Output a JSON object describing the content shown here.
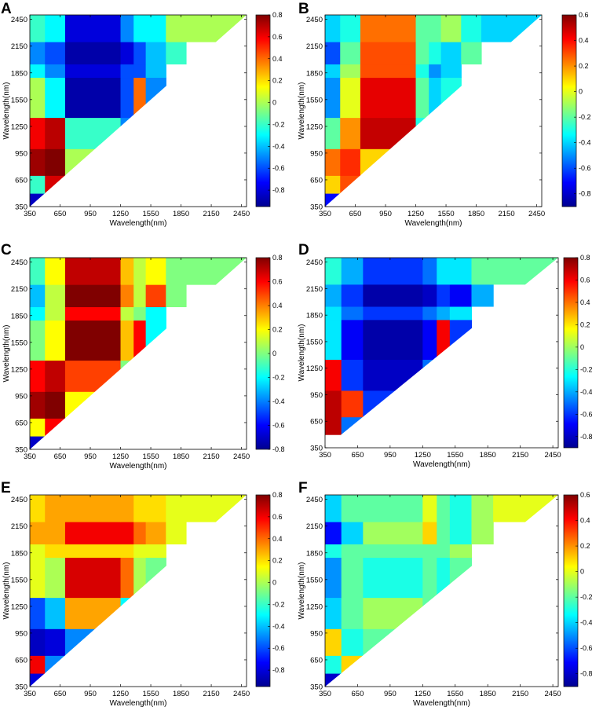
{
  "figure": {
    "colormap": [
      "#00008f",
      "#0000ff",
      "#0080ff",
      "#00ffff",
      "#80ff80",
      "#ffff00",
      "#ff8000",
      "#ff0000",
      "#800000"
    ]
  },
  "chart_data": [
    {
      "panel": "A",
      "type": "heatmap",
      "xlabel": "Wavelength(nm)",
      "ylabel": "Wavelength(nm)",
      "xlim": [
        350,
        2500
      ],
      "ylim": [
        350,
        2500
      ],
      "triangle": "upper-left",
      "x_ticks": [
        "350",
        "650",
        "950",
        "1250",
        "1550",
        "1850",
        "2150",
        "2450"
      ],
      "y_ticks": [
        "350",
        "650",
        "950",
        "1250",
        "1550",
        "1850",
        "2150",
        "2450"
      ],
      "colorbar": {
        "min": -0.95,
        "max": 0.8,
        "ticks": [
          "0.8",
          "0.6",
          "0.4",
          "0.2",
          "0",
          "-0.2",
          "-0.4",
          "-0.6",
          "-0.8"
        ]
      },
      "x_breaks": [
        350,
        500,
        700,
        1250,
        1380,
        1500,
        1700,
        1900,
        2500
      ],
      "y_breaks": [
        350,
        500,
        700,
        1000,
        1350,
        1800,
        1950,
        2200,
        2500
      ],
      "values": [
        [
          -0.85,
          null,
          null,
          null,
          null,
          null,
          null,
          null
        ],
        [
          -0.2,
          0.65,
          null,
          null,
          null,
          null,
          null,
          null
        ],
        [
          0.75,
          0.8,
          0.0,
          null,
          null,
          null,
          null,
          null
        ],
        [
          0.6,
          0.7,
          -0.2,
          -0.5,
          null,
          null,
          null,
          null
        ],
        [
          0.0,
          -0.3,
          -0.9,
          -0.6,
          0.4,
          -0.5,
          null,
          null
        ],
        [
          -0.3,
          -0.5,
          -0.8,
          -0.6,
          -0.6,
          -0.4,
          null,
          null
        ],
        [
          -0.5,
          -0.6,
          -0.9,
          -0.8,
          -0.6,
          -0.4,
          -0.2,
          null
        ],
        [
          -0.2,
          -0.3,
          -0.8,
          -0.5,
          -0.3,
          -0.3,
          0.0,
          0.0
        ]
      ]
    },
    {
      "panel": "B",
      "type": "heatmap",
      "xlabel": "Wavelength(nm)",
      "ylabel": "Wavelength(nm)",
      "xlim": [
        350,
        2500
      ],
      "ylim": [
        350,
        2500
      ],
      "triangle": "upper-left",
      "x_ticks": [
        "350",
        "650",
        "950",
        "1250",
        "1550",
        "1850",
        "2150",
        "2450"
      ],
      "y_ticks": [
        "350",
        "650",
        "950",
        "1250",
        "1550",
        "1850",
        "2150",
        "2450"
      ],
      "colorbar": {
        "min": -0.9,
        "max": 0.6,
        "ticks": [
          "0.6",
          "0.4",
          "0.2",
          "0",
          "-0.2",
          "-0.4",
          "-0.6",
          "-0.8"
        ]
      },
      "x_breaks": [
        350,
        500,
        700,
        1250,
        1380,
        1500,
        1700,
        1900,
        2500
      ],
      "y_breaks": [
        350,
        500,
        700,
        1000,
        1350,
        1800,
        1950,
        2200,
        2500
      ],
      "values": [
        [
          -0.7,
          null,
          null,
          null,
          null,
          null,
          null,
          null
        ],
        [
          0.1,
          0.3,
          null,
          null,
          null,
          null,
          null,
          null
        ],
        [
          0.25,
          0.35,
          0.1,
          null,
          null,
          null,
          null,
          null
        ],
        [
          -0.2,
          0.2,
          0.5,
          -0.3,
          null,
          null,
          null,
          null
        ],
        [
          -0.5,
          0.0,
          0.45,
          -0.2,
          -0.4,
          -0.3,
          null,
          null
        ],
        [
          -0.4,
          -0.1,
          0.3,
          -0.3,
          -0.5,
          -0.4,
          null,
          null
        ],
        [
          -0.6,
          -0.2,
          0.3,
          -0.2,
          -0.3,
          -0.4,
          -0.2,
          null
        ],
        [
          -0.4,
          -0.3,
          0.25,
          -0.2,
          -0.2,
          -0.1,
          -0.3,
          -0.4
        ]
      ]
    },
    {
      "panel": "C",
      "type": "heatmap",
      "xlabel": "Wavelength(nm)",
      "ylabel": "Wavelength(nm)",
      "xlim": [
        350,
        2500
      ],
      "ylim": [
        350,
        2500
      ],
      "triangle": "upper-left",
      "x_ticks": [
        "350",
        "650",
        "950",
        "1250",
        "1550",
        "1850",
        "2150",
        "2450"
      ],
      "y_ticks": [
        "350",
        "650",
        "950",
        "1250",
        "1550",
        "1850",
        "2150",
        "2450"
      ],
      "colorbar": {
        "min": -0.8,
        "max": 0.8,
        "ticks": [
          "0.8",
          "0.6",
          "0.4",
          "0.2",
          "0",
          "-0.2",
          "-0.4",
          "-0.6",
          "-0.8"
        ]
      },
      "x_breaks": [
        350,
        500,
        700,
        1250,
        1380,
        1500,
        1700,
        1900,
        2500
      ],
      "y_breaks": [
        350,
        500,
        700,
        1000,
        1350,
        1800,
        1950,
        2200,
        2500
      ],
      "values": [
        [
          -0.7,
          null,
          null,
          null,
          null,
          null,
          null,
          null
        ],
        [
          0.2,
          0.6,
          null,
          null,
          null,
          null,
          null,
          null
        ],
        [
          0.75,
          0.8,
          0.2,
          null,
          null,
          null,
          null,
          null
        ],
        [
          0.6,
          0.7,
          0.5,
          0.0,
          null,
          null,
          null,
          null
        ],
        [
          0.0,
          0.2,
          0.8,
          0.3,
          0.6,
          -0.2,
          null,
          null
        ],
        [
          -0.2,
          0.1,
          0.6,
          0.1,
          0.0,
          -0.2,
          null,
          null
        ],
        [
          -0.3,
          0.1,
          0.8,
          0.4,
          0.1,
          0.5,
          0.0,
          null
        ],
        [
          -0.1,
          0.2,
          0.7,
          0.3,
          0.1,
          0.2,
          0.0,
          0.0
        ]
      ]
    },
    {
      "panel": "D",
      "type": "heatmap",
      "xlabel": "Wavelength(nm)",
      "ylabel": "Wavelength(nm)",
      "xlim": [
        350,
        2500
      ],
      "ylim": [
        350,
        2500
      ],
      "triangle": "upper-left",
      "x_ticks": [
        "350",
        "650",
        "950",
        "1250",
        "1550",
        "1850",
        "2150",
        "2450"
      ],
      "y_ticks": [
        "350",
        "650",
        "950",
        "1250",
        "1550",
        "1850",
        "2150",
        "2450"
      ],
      "colorbar": {
        "min": -0.9,
        "max": 0.8,
        "ticks": [
          "0.8",
          "0.6",
          "0.4",
          "0.2",
          "0",
          "-0.2",
          "-0.4",
          "-0.6",
          "-0.8"
        ]
      },
      "x_breaks": [
        350,
        500,
        700,
        1250,
        1380,
        1500,
        1700,
        1900,
        2500
      ],
      "y_breaks": [
        350,
        500,
        700,
        1000,
        1350,
        1800,
        1950,
        2200,
        2500
      ],
      "values": [
        [
          null,
          null,
          null,
          null,
          null,
          null,
          null,
          null
        ],
        [
          0.7,
          -0.5,
          null,
          null,
          null,
          null,
          null,
          null
        ],
        [
          0.7,
          0.5,
          -0.6,
          null,
          null,
          null,
          null,
          null
        ],
        [
          0.6,
          -0.6,
          -0.8,
          -0.5,
          null,
          null,
          null,
          null
        ],
        [
          -0.3,
          -0.7,
          -0.85,
          -0.7,
          0.6,
          -0.6,
          null,
          null
        ],
        [
          -0.3,
          -0.5,
          -0.6,
          -0.5,
          -0.4,
          -0.3,
          null,
          null
        ],
        [
          -0.4,
          -0.6,
          -0.85,
          -0.8,
          -0.6,
          -0.7,
          -0.4,
          null
        ],
        [
          -0.2,
          -0.4,
          -0.6,
          -0.5,
          -0.3,
          -0.3,
          -0.1,
          -0.1
        ]
      ]
    },
    {
      "panel": "E",
      "type": "heatmap",
      "xlabel": "Wavelength(nm)",
      "ylabel": "Wavelength(nm)",
      "xlim": [
        350,
        2500
      ],
      "ylim": [
        350,
        2500
      ],
      "triangle": "upper-left",
      "x_ticks": [
        "350",
        "650",
        "950",
        "1250",
        "1550",
        "1850",
        "2150",
        "2450"
      ],
      "y_ticks": [
        "350",
        "650",
        "950",
        "1250",
        "1550",
        "1850",
        "2150",
        "2450"
      ],
      "colorbar": {
        "min": -0.95,
        "max": 0.8,
        "ticks": [
          "0.8",
          "0.6",
          "0.4",
          "0.2",
          "0",
          "-0.2",
          "-0.4",
          "-0.6",
          "-0.8"
        ]
      },
      "x_breaks": [
        350,
        500,
        700,
        1250,
        1380,
        1500,
        1700,
        1900,
        2500
      ],
      "y_breaks": [
        350,
        500,
        700,
        1000,
        1350,
        1800,
        1950,
        2200,
        2500
      ],
      "values": [
        [
          -0.8,
          null,
          null,
          null,
          null,
          null,
          null,
          null
        ],
        [
          0.6,
          -0.5,
          null,
          null,
          null,
          null,
          null,
          null
        ],
        [
          -0.85,
          -0.8,
          -0.5,
          null,
          null,
          null,
          null,
          null
        ],
        [
          -0.6,
          -0.4,
          0.3,
          -0.3,
          null,
          null,
          null,
          null
        ],
        [
          0.1,
          0.0,
          0.65,
          0.4,
          0.0,
          -0.1,
          null,
          null
        ],
        [
          0.1,
          0.2,
          0.2,
          0.2,
          0.1,
          0.1,
          null,
          null
        ],
        [
          0.3,
          0.3,
          0.6,
          0.6,
          0.4,
          0.3,
          0.1,
          null
        ],
        [
          0.2,
          0.3,
          0.3,
          0.3,
          0.2,
          0.2,
          0.1,
          0.1
        ]
      ]
    },
    {
      "panel": "F",
      "type": "heatmap",
      "xlabel": "Wavelength(nm)",
      "ylabel": "Wavelength(nm)",
      "xlim": [
        350,
        2500
      ],
      "ylim": [
        350,
        2500
      ],
      "triangle": "upper-left",
      "x_ticks": [
        "350",
        "650",
        "950",
        "1250",
        "1550",
        "1850",
        "2150",
        "2450"
      ],
      "y_ticks": [
        "350",
        "650",
        "950",
        "1250",
        "1550",
        "1850",
        "2150",
        "2450"
      ],
      "colorbar": {
        "min": -0.9,
        "max": 0.6,
        "ticks": [
          "0.6",
          "0.4",
          "0.2",
          "0",
          "-0.2",
          "-0.4",
          "-0.6",
          "-0.8"
        ]
      },
      "x_breaks": [
        350,
        500,
        700,
        1250,
        1380,
        1500,
        1700,
        1900,
        2500
      ],
      "y_breaks": [
        350,
        500,
        700,
        1000,
        1350,
        1800,
        1950,
        2200,
        2500
      ],
      "values": [
        [
          -0.8,
          null,
          null,
          null,
          null,
          null,
          null,
          null
        ],
        [
          -0.3,
          0.1,
          null,
          null,
          null,
          null,
          null,
          null
        ],
        [
          0.1,
          -0.3,
          -0.2,
          null,
          null,
          null,
          null,
          null
        ],
        [
          -0.4,
          -0.2,
          -0.1,
          -0.2,
          null,
          null,
          null,
          null
        ],
        [
          -0.5,
          -0.2,
          -0.3,
          -0.2,
          -0.3,
          -0.2,
          null,
          null
        ],
        [
          -0.3,
          -0.2,
          -0.2,
          -0.2,
          -0.2,
          -0.1,
          null,
          null
        ],
        [
          -0.7,
          -0.4,
          -0.1,
          0.1,
          -0.2,
          -0.3,
          -0.1,
          null
        ],
        [
          -0.4,
          -0.2,
          -0.2,
          0.0,
          -0.2,
          -0.3,
          -0.1,
          0.0
        ]
      ]
    }
  ]
}
